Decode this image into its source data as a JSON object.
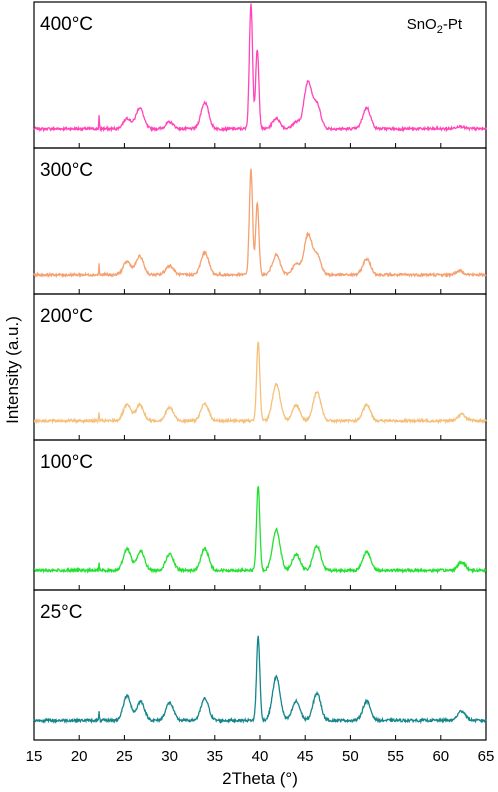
{
  "chart_data": {
    "type": "line",
    "sample_label": "SnO2-Pt",
    "sample_label_parts": {
      "base": "SnO",
      "sub": "2",
      "rest": "-Pt"
    },
    "xlabel": "2Theta (°)",
    "ylabel": "Intensity (a.u.)",
    "xlim": [
      15,
      65
    ],
    "xticks": [
      15,
      20,
      25,
      30,
      35,
      40,
      45,
      50,
      55,
      60,
      65
    ],
    "grid": false,
    "stacking": "vertical panels, top to bottom",
    "panels": [
      {
        "label": "400°C",
        "color": "#ff45b8",
        "baseline": 0.1,
        "peaks": [
          {
            "x": 22.2,
            "h": 0.1
          },
          {
            "x": 25.3,
            "h": 0.08
          },
          {
            "x": 26.7,
            "h": 0.16
          },
          {
            "x": 30.0,
            "h": 0.05
          },
          {
            "x": 33.9,
            "h": 0.2
          },
          {
            "x": 39.0,
            "h": 0.95
          },
          {
            "x": 39.7,
            "h": 0.6
          },
          {
            "x": 41.8,
            "h": 0.08
          },
          {
            "x": 44.0,
            "h": 0.05
          },
          {
            "x": 45.3,
            "h": 0.35
          },
          {
            "x": 46.3,
            "h": 0.18
          },
          {
            "x": 51.8,
            "h": 0.16
          },
          {
            "x": 62.1,
            "h": 0.02
          }
        ]
      },
      {
        "label": "300°C",
        "color": "#f4a070",
        "baseline": 0.1,
        "peaks": [
          {
            "x": 22.2,
            "h": 0.08
          },
          {
            "x": 25.3,
            "h": 0.1
          },
          {
            "x": 26.7,
            "h": 0.14
          },
          {
            "x": 30.0,
            "h": 0.07
          },
          {
            "x": 33.9,
            "h": 0.17
          },
          {
            "x": 39.0,
            "h": 0.8
          },
          {
            "x": 39.7,
            "h": 0.55
          },
          {
            "x": 41.8,
            "h": 0.15
          },
          {
            "x": 44.0,
            "h": 0.08
          },
          {
            "x": 45.3,
            "h": 0.3
          },
          {
            "x": 46.3,
            "h": 0.15
          },
          {
            "x": 51.8,
            "h": 0.12
          },
          {
            "x": 62.1,
            "h": 0.03
          }
        ]
      },
      {
        "label": "200°C",
        "color": "#f5c07a",
        "baseline": 0.1,
        "peaks": [
          {
            "x": 22.2,
            "h": 0.06
          },
          {
            "x": 25.3,
            "h": 0.12
          },
          {
            "x": 26.7,
            "h": 0.12
          },
          {
            "x": 30.0,
            "h": 0.1
          },
          {
            "x": 33.9,
            "h": 0.13
          },
          {
            "x": 39.8,
            "h": 0.6
          },
          {
            "x": 41.8,
            "h": 0.28
          },
          {
            "x": 44.0,
            "h": 0.12
          },
          {
            "x": 46.3,
            "h": 0.22
          },
          {
            "x": 51.8,
            "h": 0.12
          },
          {
            "x": 62.3,
            "h": 0.05
          }
        ]
      },
      {
        "label": "100°C",
        "color": "#22e030",
        "baseline": 0.1,
        "peaks": [
          {
            "x": 22.2,
            "h": 0.06
          },
          {
            "x": 25.3,
            "h": 0.16
          },
          {
            "x": 26.8,
            "h": 0.14
          },
          {
            "x": 30.0,
            "h": 0.12
          },
          {
            "x": 33.9,
            "h": 0.16
          },
          {
            "x": 39.8,
            "h": 0.62
          },
          {
            "x": 41.8,
            "h": 0.3
          },
          {
            "x": 44.0,
            "h": 0.12
          },
          {
            "x": 46.3,
            "h": 0.18
          },
          {
            "x": 51.8,
            "h": 0.14
          },
          {
            "x": 62.3,
            "h": 0.06
          }
        ]
      },
      {
        "label": "25°C",
        "color": "#15858a",
        "baseline": 0.1,
        "peaks": [
          {
            "x": 22.2,
            "h": 0.06
          },
          {
            "x": 25.3,
            "h": 0.18
          },
          {
            "x": 26.8,
            "h": 0.14
          },
          {
            "x": 30.0,
            "h": 0.13
          },
          {
            "x": 33.9,
            "h": 0.16
          },
          {
            "x": 39.8,
            "h": 0.62
          },
          {
            "x": 41.8,
            "h": 0.32
          },
          {
            "x": 44.0,
            "h": 0.14
          },
          {
            "x": 46.3,
            "h": 0.2
          },
          {
            "x": 51.8,
            "h": 0.14
          },
          {
            "x": 62.3,
            "h": 0.07
          }
        ]
      }
    ]
  }
}
